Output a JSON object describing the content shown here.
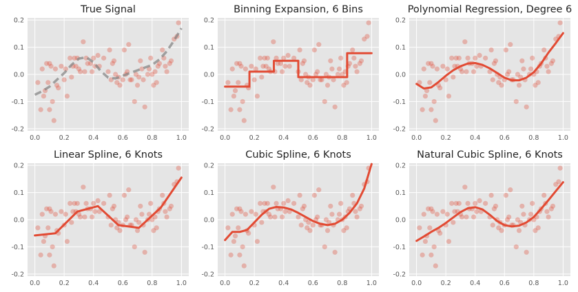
{
  "style": {
    "axes_bg": "#E5E5E5",
    "grid": "#FFFFFF",
    "point_color": "#E24A33",
    "fit_color": "#E24A33",
    "true_color": "#808080"
  },
  "scatter_points": {
    "x": [
      0.02,
      0.04,
      0.05,
      0.06,
      0.07,
      0.08,
      0.09,
      0.1,
      0.1,
      0.11,
      0.12,
      0.13,
      0.14,
      0.15,
      0.16,
      0.18,
      0.2,
      0.21,
      0.22,
      0.24,
      0.25,
      0.26,
      0.27,
      0.28,
      0.29,
      0.3,
      0.31,
      0.33,
      0.34,
      0.35,
      0.36,
      0.38,
      0.39,
      0.4,
      0.41,
      0.43,
      0.44,
      0.47,
      0.5,
      0.51,
      0.52,
      0.53,
      0.54,
      0.55,
      0.56,
      0.57,
      0.58,
      0.6,
      0.61,
      0.62,
      0.63,
      0.64,
      0.65,
      0.66,
      0.68,
      0.69,
      0.7,
      0.71,
      0.72,
      0.73,
      0.74,
      0.75,
      0.77,
      0.78,
      0.79,
      0.8,
      0.81,
      0.82,
      0.83,
      0.84,
      0.85,
      0.87,
      0.88,
      0.89,
      0.9,
      0.92,
      0.93,
      0.95,
      0.97,
      0.98
    ],
    "y": [
      -0.03,
      -0.13,
      0.02,
      -0.08,
      -0.06,
      0.04,
      -0.03,
      0.04,
      -0.13,
      0.03,
      -0.1,
      -0.17,
      0.02,
      -0.04,
      -0.05,
      0.03,
      -0.02,
      0.02,
      -0.08,
      0.06,
      -0.01,
      0.03,
      0.06,
      0.03,
      0.06,
      0.02,
      0.01,
      0.12,
      0.01,
      0.06,
      0.04,
      0.04,
      0.01,
      0.06,
      0.03,
      0.07,
      0.03,
      0.06,
      0.01,
      0.09,
      -0.02,
      0.04,
      0.05,
      0.0,
      -0.03,
      -0.01,
      -0.04,
      -0.02,
      0.09,
      0.0,
      0.01,
      0.11,
      -0.02,
      -0.02,
      -0.1,
      0.0,
      -0.04,
      -0.01,
      0.05,
      0.02,
      -0.02,
      -0.12,
      0.0,
      0.02,
      0.06,
      0.0,
      -0.04,
      0.01,
      -0.03,
      0.03,
      0.04,
      0.09,
      0.06,
      0.03,
      0.01,
      0.04,
      0.05,
      0.13,
      0.14,
      0.19
    ]
  },
  "chart_data": [
    {
      "type": "line",
      "title": "True Signal",
      "fit_style": "dashed",
      "x": [
        0,
        0.05,
        0.1,
        0.15,
        0.2,
        0.25,
        0.3,
        0.35,
        0.4,
        0.45,
        0.5,
        0.55,
        0.6,
        0.65,
        0.7,
        0.75,
        0.8,
        0.85,
        0.9,
        0.95,
        1.0
      ],
      "y": [
        -0.075,
        -0.062,
        -0.045,
        -0.02,
        0.005,
        0.035,
        0.058,
        0.063,
        0.045,
        0.012,
        -0.012,
        -0.015,
        -0.005,
        0.005,
        0.015,
        0.025,
        0.035,
        0.055,
        0.085,
        0.125,
        0.17
      ],
      "xlim": [
        0,
        1
      ],
      "ylim": [
        -0.2,
        0.2
      ],
      "xticks": [
        "0.0",
        "0.2",
        "0.4",
        "0.6",
        "0.8",
        "1.0"
      ],
      "yticks": [
        "-0.2",
        "-0.1",
        "0.0",
        "0.1",
        "0.2"
      ]
    },
    {
      "type": "line",
      "title": "Binning Expansion, 6 Bins",
      "fit_style": "step",
      "x": [
        0,
        0.1667,
        0.1667,
        0.3333,
        0.3333,
        0.5,
        0.5,
        0.6667,
        0.6667,
        0.8333,
        0.8333,
        1.0
      ],
      "y": [
        -0.045,
        -0.045,
        0.01,
        0.01,
        0.05,
        0.05,
        -0.01,
        -0.01,
        -0.01,
        -0.01,
        0.078,
        0.078
      ],
      "xlim": [
        0,
        1
      ],
      "ylim": [
        -0.2,
        0.2
      ],
      "xticks": [
        "0.0",
        "0.2",
        "0.4",
        "0.6",
        "0.8",
        "1.0"
      ],
      "yticks": [
        "-0.2",
        "-0.1",
        "0.0",
        "0.1",
        "0.2"
      ]
    },
    {
      "type": "line",
      "title": "Polynomial Regression, Degree 6",
      "fit_style": "solid",
      "x": [
        0,
        0.05,
        0.1,
        0.15,
        0.2,
        0.25,
        0.3,
        0.35,
        0.4,
        0.45,
        0.5,
        0.55,
        0.6,
        0.65,
        0.7,
        0.75,
        0.8,
        0.85,
        0.9,
        0.95,
        1.0
      ],
      "y": [
        -0.035,
        -0.052,
        -0.048,
        -0.028,
        -0.005,
        0.015,
        0.03,
        0.04,
        0.042,
        0.035,
        0.022,
        0.005,
        -0.012,
        -0.022,
        -0.022,
        -0.012,
        0.008,
        0.04,
        0.08,
        0.115,
        0.152
      ],
      "xlim": [
        0,
        1
      ],
      "ylim": [
        -0.2,
        0.2
      ],
      "xticks": [
        "0.0",
        "0.2",
        "0.4",
        "0.6",
        "0.8",
        "1.0"
      ],
      "yticks": [
        "-0.2",
        "-0.1",
        "0.0",
        "0.1",
        "0.2"
      ]
    },
    {
      "type": "line",
      "title": "Linear Spline, 6 Knots",
      "fit_style": "solid",
      "x": [
        0,
        0.14,
        0.29,
        0.43,
        0.57,
        0.71,
        0.86,
        1.0
      ],
      "y": [
        -0.058,
        -0.05,
        0.03,
        0.05,
        -0.02,
        -0.03,
        0.045,
        0.155
      ],
      "xlim": [
        0,
        1
      ],
      "ylim": [
        -0.2,
        0.2
      ],
      "xticks": [
        "0.0",
        "0.2",
        "0.4",
        "0.6",
        "0.8",
        "1.0"
      ],
      "yticks": [
        "-0.2",
        "-0.1",
        "0.0",
        "0.1",
        "0.2"
      ]
    },
    {
      "type": "line",
      "title": "Cubic Spline, 6 Knots",
      "fit_style": "solid",
      "x": [
        0,
        0.05,
        0.1,
        0.15,
        0.2,
        0.25,
        0.3,
        0.35,
        0.4,
        0.45,
        0.5,
        0.55,
        0.6,
        0.65,
        0.7,
        0.75,
        0.8,
        0.85,
        0.9,
        0.95,
        1.0
      ],
      "y": [
        -0.075,
        -0.045,
        -0.045,
        -0.038,
        -0.01,
        0.018,
        0.04,
        0.047,
        0.045,
        0.038,
        0.025,
        0.01,
        -0.005,
        -0.015,
        -0.02,
        -0.015,
        0.0,
        0.025,
        0.06,
        0.115,
        0.205
      ],
      "xlim": [
        0,
        1
      ],
      "ylim": [
        -0.2,
        0.2
      ],
      "xticks": [
        "0.0",
        "0.2",
        "0.4",
        "0.6",
        "0.8",
        "1.0"
      ],
      "yticks": [
        "-0.2",
        "-0.1",
        "0.0",
        "0.1",
        "0.2"
      ]
    },
    {
      "type": "line",
      "title": "Natural Cubic Spline, 6 Knots",
      "fit_style": "solid",
      "x": [
        0,
        0.05,
        0.1,
        0.15,
        0.2,
        0.25,
        0.3,
        0.35,
        0.4,
        0.45,
        0.5,
        0.55,
        0.6,
        0.65,
        0.7,
        0.75,
        0.8,
        0.85,
        0.9,
        0.95,
        1.0
      ],
      "y": [
        -0.078,
        -0.062,
        -0.045,
        -0.03,
        -0.012,
        0.008,
        0.028,
        0.042,
        0.046,
        0.038,
        0.018,
        -0.005,
        -0.02,
        -0.025,
        -0.022,
        -0.01,
        0.01,
        0.04,
        0.072,
        0.105,
        0.138
      ],
      "xlim": [
        0,
        1
      ],
      "ylim": [
        -0.2,
        0.2
      ],
      "xticks": [
        "0.0",
        "0.2",
        "0.4",
        "0.6",
        "0.8",
        "1.0"
      ],
      "yticks": [
        "-0.2",
        "-0.1",
        "0.0",
        "0.1",
        "0.2"
      ]
    }
  ]
}
